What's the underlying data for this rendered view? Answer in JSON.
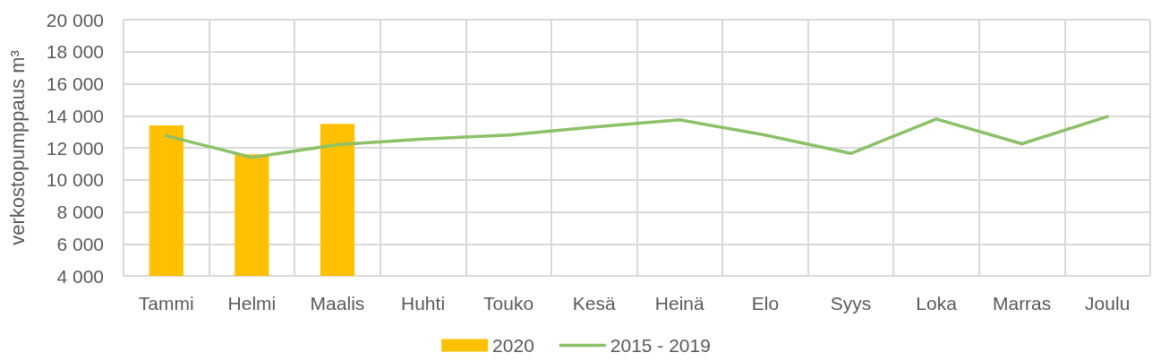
{
  "chart_data": {
    "type": "bar",
    "ylabel": "verkostopumppaus m³",
    "categories": [
      "Tammi",
      "Helmi",
      "Maalis",
      "Huhti",
      "Touko",
      "Kesä",
      "Heinä",
      "Elo",
      "Syys",
      "Loka",
      "Marras",
      "Joulu"
    ],
    "series": [
      {
        "name": "2020",
        "color": "#ffc000",
        "values": [
          13400,
          11600,
          13500,
          null,
          null,
          null,
          null,
          null,
          null,
          null,
          null,
          null
        ]
      },
      {
        "name": "2015 - 2019",
        "type": "line",
        "color": "#8cc168",
        "marker": "none",
        "line_style": "solid",
        "values": [
          12750,
          11400,
          12200,
          12550,
          12800,
          13300,
          13750,
          12800,
          11650,
          13800,
          12250,
          13950
        ]
      }
    ],
    "ylim": [
      4000,
      20000
    ],
    "yticks": [
      {
        "value": 4000,
        "label": "4 000"
      },
      {
        "value": 6000,
        "label": "6 000"
      },
      {
        "value": 8000,
        "label": "8 000"
      },
      {
        "value": 10000,
        "label": "10 000"
      },
      {
        "value": 12000,
        "label": "12 000"
      },
      {
        "value": 14000,
        "label": "14 000"
      },
      {
        "value": 16000,
        "label": "16 000"
      },
      {
        "value": 18000,
        "label": "18 000"
      },
      {
        "value": 20000,
        "label": "20 000"
      }
    ],
    "grid": true,
    "legend": "bottom"
  }
}
